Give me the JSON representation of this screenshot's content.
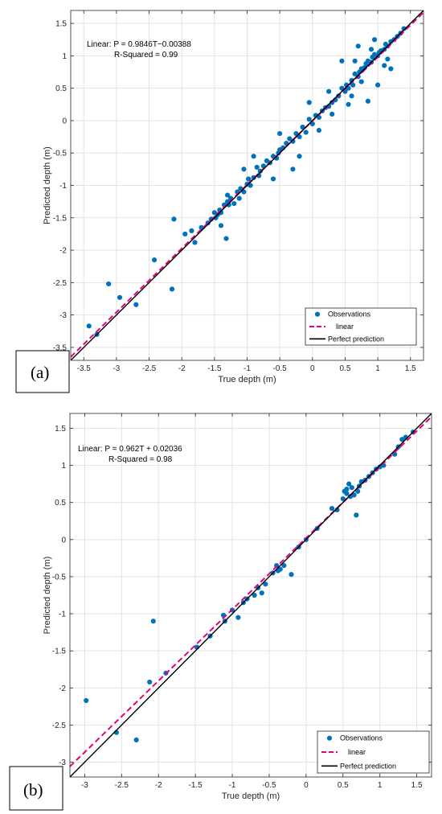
{
  "chart_data": [
    {
      "type": "scatter",
      "panel_label": "(a)",
      "xlabel": "True depth (m)",
      "ylabel": "Predicted depth (m)",
      "xlim": [
        -3.7,
        1.7
      ],
      "ylim": [
        -3.7,
        1.7
      ],
      "x_ticks": [
        -3.5,
        -3,
        -2.5,
        -2,
        -1.5,
        -1,
        -0.5,
        0,
        0.5,
        1,
        1.5
      ],
      "y_ticks": [
        -3.5,
        -3,
        -2.5,
        -2,
        -1.5,
        -1,
        -0.5,
        0,
        0.5,
        1,
        1.5
      ],
      "x_tick_labels": [
        "-3.5",
        "-3",
        "-2.5",
        "-2",
        "-1.5",
        "-1",
        "-0.5",
        "0",
        "0.5",
        "1",
        "1.5"
      ],
      "y_tick_labels": [
        "-3.5",
        "-3",
        "-2.5",
        "-2",
        "-1.5",
        "-1",
        "-0.5",
        "0",
        "0.5",
        "1",
        "1.5"
      ],
      "grid": true,
      "legend_position": "bottom-right",
      "annotation_equation": "Linear:  P = 0.9846T−0.00388",
      "annotation_r2": "R-Squared = 0.99",
      "fit": {
        "slope": 0.9846,
        "intercept": -0.00388
      },
      "series": [
        {
          "name": "Observations",
          "style": "points",
          "color": "#0072BD",
          "x": [
            -3.42,
            -3.3,
            -3.12,
            -2.95,
            -2.7,
            -2.42,
            -2.15,
            -2.12,
            -1.95,
            -1.85,
            -1.8,
            -1.7,
            -1.6,
            -1.55,
            -1.5,
            -1.48,
            -1.45,
            -1.42,
            -1.4,
            -1.35,
            -1.32,
            -1.3,
            -1.28,
            -1.25,
            -1.2,
            -1.15,
            -1.12,
            -1.1,
            -1.05,
            -1.0,
            -0.98,
            -0.95,
            -0.9,
            -0.85,
            -0.82,
            -0.8,
            -0.75,
            -0.7,
            -0.65,
            -0.6,
            -0.55,
            -0.52,
            -0.5,
            -0.45,
            -0.4,
            -0.35,
            -0.3,
            -0.25,
            -0.2,
            -0.15,
            -0.1,
            -0.05,
            0.0,
            0.05,
            0.1,
            0.15,
            0.2,
            0.25,
            0.3,
            0.35,
            0.4,
            0.45,
            0.5,
            0.52,
            0.55,
            0.6,
            0.62,
            0.65,
            0.7,
            0.72,
            0.75,
            0.8,
            0.82,
            0.85,
            0.9,
            0.92,
            0.95,
            1.0,
            1.02,
            1.05,
            1.1,
            1.12,
            1.15,
            1.2,
            1.25,
            1.3,
            1.35,
            1.4,
            -0.3,
            -0.05,
            0.45,
            0.6,
            0.85,
            1.0,
            1.1,
            0.7,
            -0.5,
            -0.9,
            -1.3,
            0.3,
            0.55,
            0.75,
            0.95,
            1.15,
            1.2,
            0.25,
            0.1,
            -0.2,
            -0.6,
            -1.05,
            -1.4,
            0.65,
            0.9
          ],
          "y": [
            -3.17,
            -3.3,
            -2.52,
            -2.73,
            -2.84,
            -2.15,
            -2.6,
            -1.52,
            -1.75,
            -1.7,
            -1.88,
            -1.65,
            -1.58,
            -1.52,
            -1.42,
            -1.5,
            -1.45,
            -1.38,
            -1.42,
            -1.3,
            -1.82,
            -1.25,
            -1.3,
            -1.2,
            -1.28,
            -1.1,
            -1.2,
            -1.05,
            -1.1,
            -0.98,
            -0.9,
            -1.0,
            -0.88,
            -0.72,
            -0.85,
            -0.78,
            -0.7,
            -0.62,
            -0.65,
            -0.55,
            -0.58,
            -0.5,
            -0.45,
            -0.42,
            -0.35,
            -0.28,
            -0.32,
            -0.2,
            -0.25,
            -0.1,
            -0.18,
            0.02,
            -0.05,
            0.08,
            0.05,
            0.15,
            0.2,
            0.22,
            0.28,
            0.32,
            0.38,
            0.5,
            0.45,
            0.55,
            0.5,
            0.62,
            0.55,
            0.72,
            0.68,
            0.75,
            0.8,
            0.82,
            0.88,
            0.92,
            0.9,
            0.98,
            1.02,
            1.0,
            1.05,
            1.08,
            1.1,
            1.18,
            1.15,
            1.22,
            1.25,
            1.3,
            1.35,
            1.42,
            -0.75,
            0.28,
            0.92,
            0.38,
            0.3,
            0.55,
            0.85,
            1.15,
            -0.2,
            -0.55,
            -1.15,
            0.1,
            0.25,
            0.6,
            1.25,
            0.95,
            0.8,
            0.45,
            -0.15,
            -0.55,
            -0.9,
            -0.75,
            -1.62,
            0.92,
            1.1
          ]
        },
        {
          "name": "linear",
          "style": "dashed",
          "color": "#E6007E"
        },
        {
          "name": "Perfect prediction",
          "style": "solid",
          "color": "#000000"
        }
      ]
    },
    {
      "type": "scatter",
      "panel_label": "(b)",
      "xlabel": "True depth (m)",
      "ylabel": "Predicted depth (m)",
      "xlim": [
        -3.2,
        1.7
      ],
      "ylim": [
        -3.2,
        1.7
      ],
      "x_ticks": [
        -3,
        -2.5,
        -2,
        -1.5,
        -1,
        -0.5,
        0,
        0.5,
        1,
        1.5
      ],
      "y_ticks": [
        -3,
        -2.5,
        -2,
        -1.5,
        -1,
        -0.5,
        0,
        0.5,
        1,
        1.5
      ],
      "x_tick_labels": [
        "-3",
        "-2.5",
        "-2",
        "-1.5",
        "-1",
        "-0.5",
        "0",
        "0.5",
        "1",
        "1.5"
      ],
      "y_tick_labels": [
        "-3",
        "-2.5",
        "-2",
        "-1.5",
        "-1",
        "-0.5",
        "0",
        "0.5",
        "1",
        "1.5"
      ],
      "grid": true,
      "legend_position": "bottom-right",
      "annotation_equation": "Linear:  P = 0.962T + 0.02036",
      "annotation_r2": "R-Squared = 0.98",
      "fit": {
        "slope": 0.962,
        "intercept": 0.02036
      },
      "series": [
        {
          "name": "Observations",
          "style": "points",
          "color": "#0072BD",
          "x": [
            -2.98,
            -2.57,
            -2.3,
            -2.12,
            -2.07,
            -1.9,
            -1.48,
            -1.3,
            -1.12,
            -1.1,
            -1.0,
            -0.92,
            -0.85,
            -0.8,
            -0.7,
            -0.65,
            -0.6,
            -0.55,
            -0.45,
            -0.4,
            -0.38,
            -0.35,
            -0.3,
            -0.2,
            -0.1,
            0.0,
            0.15,
            0.35,
            0.42,
            0.5,
            0.52,
            0.55,
            0.58,
            0.62,
            0.65,
            0.68,
            0.7,
            0.72,
            0.75,
            0.8,
            0.85,
            0.9,
            0.95,
            1.0,
            1.05,
            1.2,
            1.25,
            1.3,
            1.35,
            1.45,
            0.55,
            0.6
          ],
          "y": [
            -2.17,
            -2.6,
            -2.7,
            -1.92,
            -1.1,
            -1.8,
            -1.45,
            -1.3,
            -1.02,
            -1.1,
            -0.95,
            -1.05,
            -0.85,
            -0.8,
            -0.75,
            -0.65,
            -0.72,
            -0.6,
            -0.45,
            -0.35,
            -0.42,
            -0.4,
            -0.35,
            -0.47,
            -0.1,
            0.0,
            0.15,
            0.42,
            0.4,
            0.55,
            0.65,
            0.62,
            0.75,
            0.7,
            0.6,
            0.33,
            0.65,
            0.72,
            0.78,
            0.8,
            0.85,
            0.9,
            0.95,
            0.98,
            1.0,
            1.15,
            1.25,
            1.35,
            1.38,
            1.45,
            0.68,
            0.58
          ]
        },
        {
          "name": "linear",
          "style": "dashed",
          "color": "#E6007E"
        },
        {
          "name": "Perfect prediction",
          "style": "solid",
          "color": "#000000"
        }
      ]
    }
  ]
}
